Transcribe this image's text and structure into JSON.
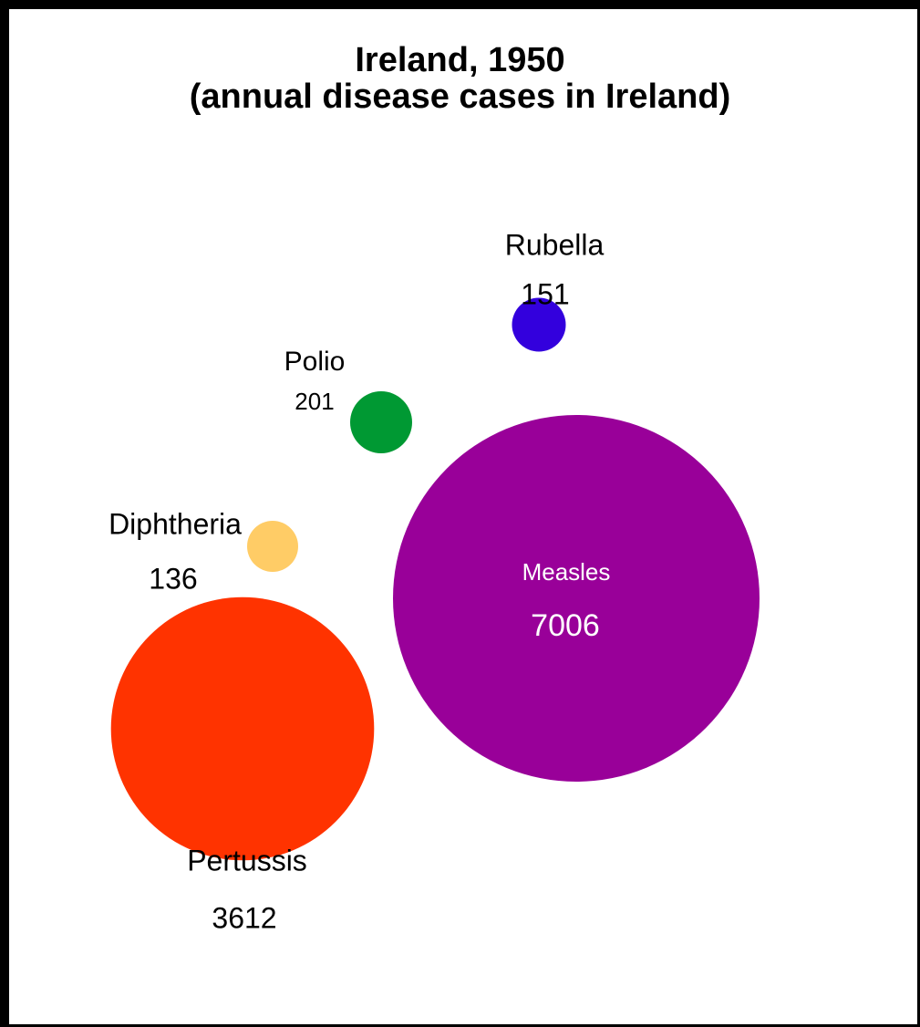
{
  "title": "Ireland, 1950",
  "subtitle": "(annual disease cases in Ireland)",
  "chart_data": {
    "type": "bubble",
    "title": "Ireland, 1950",
    "subtitle": "(annual disease cases in Ireland)",
    "series": [
      {
        "name": "Rubella",
        "value": 151,
        "color": "#3300dd"
      },
      {
        "name": "Polio",
        "value": 201,
        "color": "#009933"
      },
      {
        "name": "Diphtheria",
        "value": 136,
        "color": "#ffcc66"
      },
      {
        "name": "Measles",
        "value": 7006,
        "color": "#990099"
      },
      {
        "name": "Pertussis",
        "value": 3612,
        "color": "#ff3300"
      }
    ]
  }
}
